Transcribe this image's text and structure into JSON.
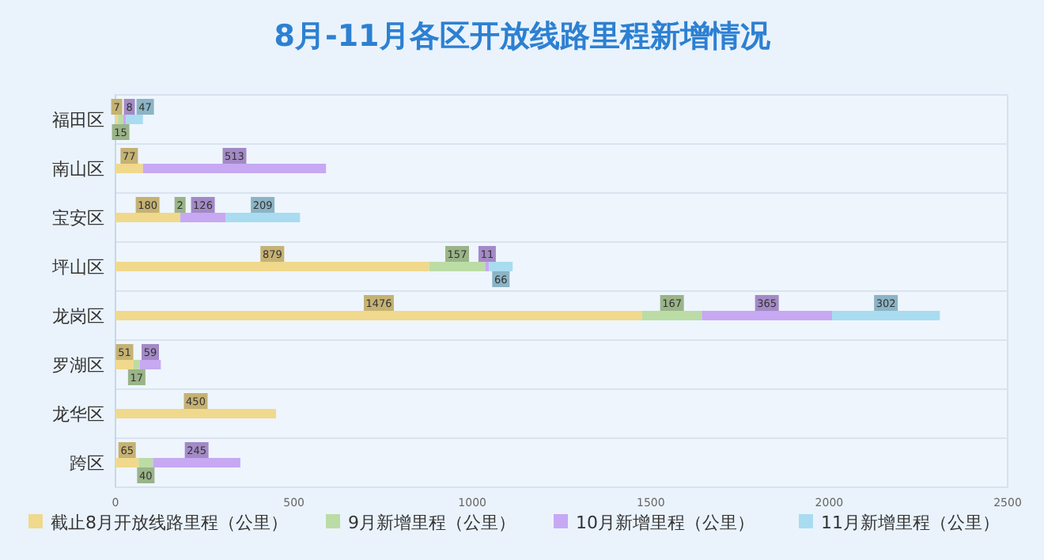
{
  "chart_data": {
    "type": "bar",
    "orientation": "horizontal",
    "stacked": true,
    "title": "8月-11月各区开放线路里程新增情况",
    "categories": [
      "福田区",
      "南山区",
      "宝安区",
      "坪山区",
      "龙岗区",
      "罗湖区",
      "龙华区",
      "跨区"
    ],
    "series": [
      {
        "name": "截止8月开放线路里程（公里）",
        "color": "#f0d98c",
        "values": [
          7,
          77,
          180,
          879,
          1476,
          51,
          450,
          65
        ]
      },
      {
        "name": "9月新增里程（公里）",
        "color": "#bcdca6",
        "values": [
          15,
          null,
          2,
          157,
          167,
          17,
          null,
          40
        ]
      },
      {
        "name": "10月新增里程（公里）",
        "color": "#c7a8f2",
        "values": [
          8,
          513,
          126,
          11,
          365,
          59,
          null,
          245
        ]
      },
      {
        "name": "11月新增里程（公里）",
        "color": "#a9dcf0",
        "values": [
          47,
          null,
          209,
          66,
          302,
          null,
          null,
          null
        ]
      }
    ],
    "xlim": [
      0,
      2500
    ],
    "xticks": [
      0,
      500,
      1000,
      1500,
      2000,
      2500
    ],
    "data_labels": true,
    "grid": "y",
    "legend": "bottom"
  }
}
